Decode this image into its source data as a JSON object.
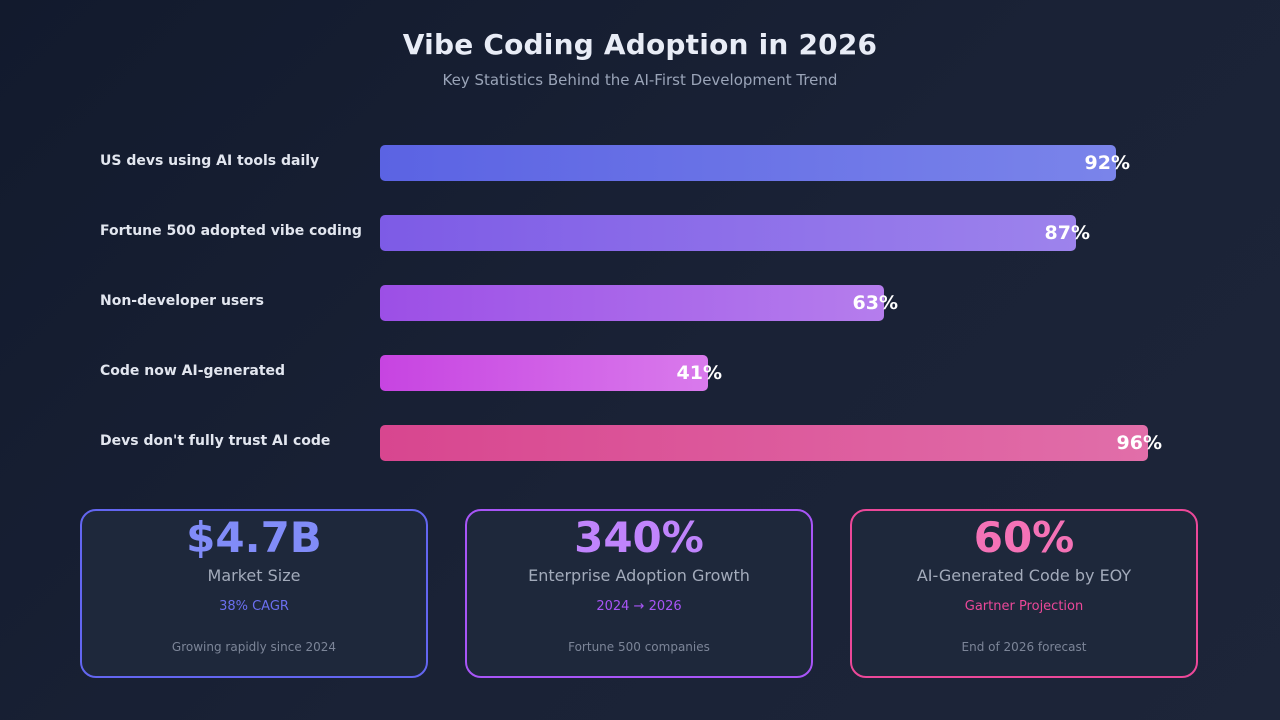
{
  "chart_data": {
    "type": "bar",
    "orientation": "horizontal",
    "title": "Vibe Coding Adoption in 2026",
    "subtitle": "Key Statistics Behind the AI-First Development Trend",
    "categories": [
      "US devs using AI tools daily",
      "Fortune 500 adopted vibe coding",
      "Non-developer users",
      "Code now AI-generated",
      "Devs don't fully trust AI code"
    ],
    "values": [
      92,
      87,
      63,
      41,
      96
    ],
    "value_labels": [
      "92%",
      "87%",
      "63%",
      "41%",
      "96%"
    ],
    "xlim": [
      0,
      100
    ],
    "grid": false,
    "bar_colors": [
      [
        "#5b63e3",
        "#7a84ea"
      ],
      [
        "#7d5be6",
        "#9d83ec"
      ],
      [
        "#9c4fe6",
        "#b57ded"
      ],
      [
        "#c744e1",
        "#d97aec"
      ],
      [
        "#d8468f",
        "#e16ea9"
      ]
    ]
  },
  "cards": [
    {
      "value": "$4.7B",
      "label": "Market Size",
      "note": "38% CAGR",
      "foot": "Growing rapidly since 2024",
      "border": "#6366f1",
      "value_color": "#818cf8",
      "note_color": "#6b6ff0"
    },
    {
      "value": "340%",
      "label": "Enterprise Adoption Growth",
      "note": "2024 → 2026",
      "foot": "Fortune 500 companies",
      "border": "#a855f7",
      "value_color": "#c084fc",
      "note_color": "#a855f7"
    },
    {
      "value": "60%",
      "label": "AI-Generated Code by EOY",
      "note": "Gartner Projection",
      "foot": "End of 2026 forecast",
      "border": "#ec4899",
      "value_color": "#f472b6",
      "note_color": "#ec4899"
    }
  ]
}
